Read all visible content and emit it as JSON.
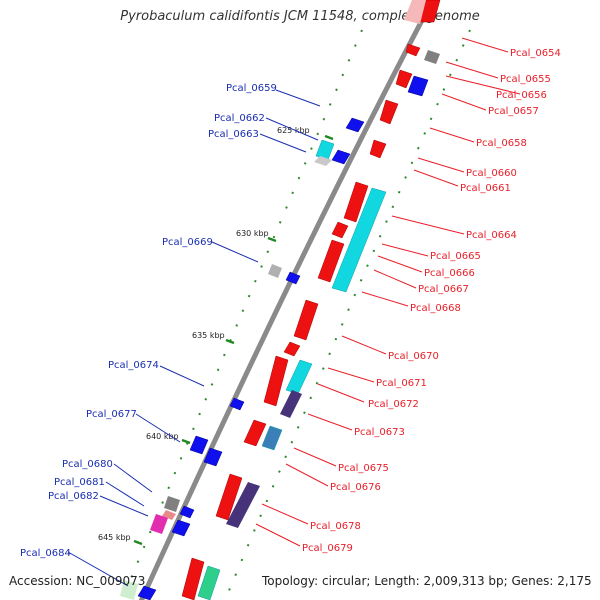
{
  "title": "Pyrobaculum calidifontis JCM 11548, complete genome",
  "accession": "Accession: NC_009073",
  "topology": "Topology: circular; Length: 2,009,313 bp; Genes: 2,175",
  "ticks": [
    "625 kbp",
    "630 kbp",
    "635 kbp",
    "640 kbp",
    "645 kbp"
  ],
  "right_labels": [
    "Pcal_0654",
    "Pcal_0655",
    "Pcal_0656",
    "Pcal_0657",
    "Pcal_0658",
    "Pcal_0660",
    "Pcal_0661",
    "Pcal_0664",
    "Pcal_0665",
    "Pcal_0666",
    "Pcal_0667",
    "Pcal_0668",
    "Pcal_0670",
    "Pcal_0671",
    "Pcal_0672",
    "Pcal_0673",
    "Pcal_0675",
    "Pcal_0676",
    "Pcal_0678",
    "Pcal_0679"
  ],
  "left_labels": [
    "Pcal_0659",
    "Pcal_0662",
    "Pcal_0663",
    "Pcal_0669",
    "Pcal_0674",
    "Pcal_0677",
    "Pcal_0680",
    "Pcal_0681",
    "Pcal_0682",
    "Pcal_0684"
  ],
  "colors": {
    "forward_gene": "#ee1111",
    "reverse_gene": "#1010ee",
    "cyan_feature": "#11d8e0",
    "gray_feature": "#777777",
    "backbone": "#888888",
    "tick": "#228822",
    "label_right": "#e8202a",
    "label_left": "#1a2fb0"
  }
}
